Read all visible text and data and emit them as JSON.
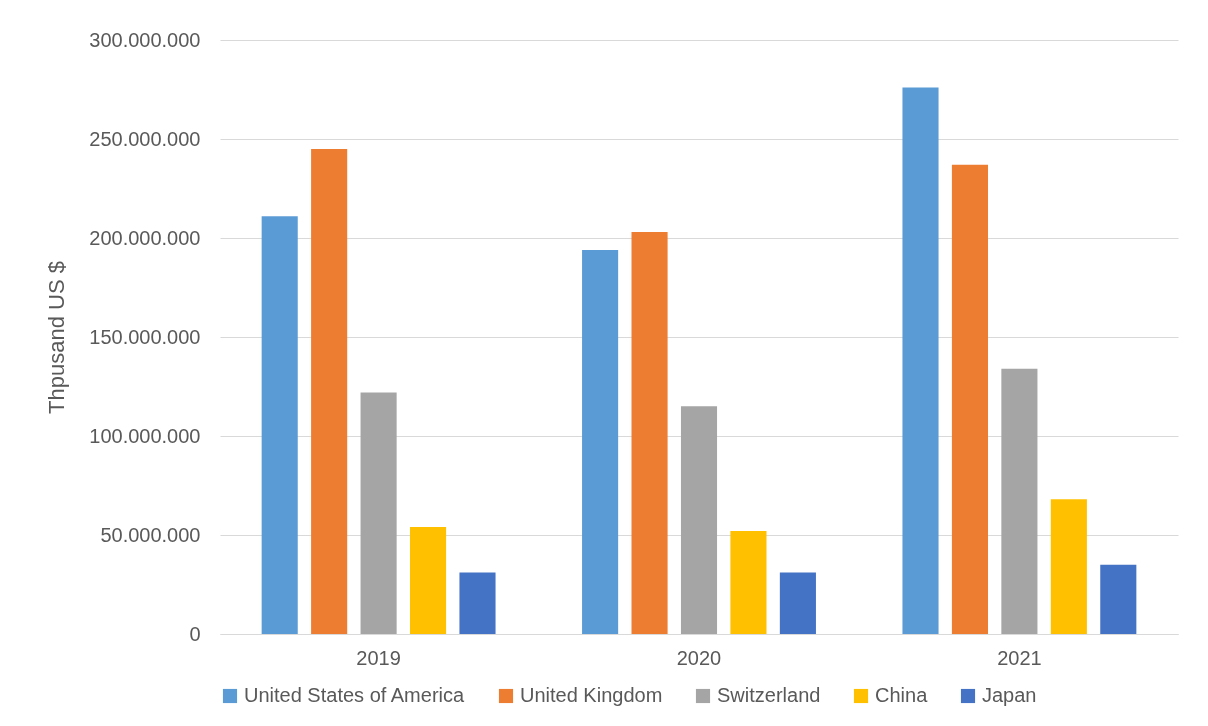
{
  "chart_data": {
    "type": "bar",
    "ylabel": "Thpusand US $",
    "categories": [
      "2019",
      "2020",
      "2021"
    ],
    "series": [
      {
        "name": "United States of America",
        "color": "#5b9bd5",
        "values": [
          211000000,
          194000000,
          276000000
        ]
      },
      {
        "name": "United Kingdom",
        "color": "#ed7d31",
        "values": [
          245000000,
          203000000,
          237000000
        ]
      },
      {
        "name": "Switzerland",
        "color": "#a5a5a5",
        "values": [
          122000000,
          115000000,
          134000000
        ]
      },
      {
        "name": "China",
        "color": "#ffc000",
        "values": [
          54000000,
          52000000,
          68000000
        ]
      },
      {
        "name": "Japan",
        "color": "#4472c4",
        "values": [
          31000000,
          31000000,
          35000000
        ]
      }
    ],
    "ylim": [
      0,
      300000000
    ],
    "yticks": [
      {
        "value": 0,
        "label": "0"
      },
      {
        "value": 50000000,
        "label": "50.000.000"
      },
      {
        "value": 100000000,
        "label": "100.000.000"
      },
      {
        "value": 150000000,
        "label": "150.000.000"
      },
      {
        "value": 200000000,
        "label": "200.000.000"
      },
      {
        "value": 250000000,
        "label": "250.000.000"
      },
      {
        "value": 300000000,
        "label": "300.000.000"
      }
    ],
    "grid": "y",
    "legend": "bottom"
  }
}
